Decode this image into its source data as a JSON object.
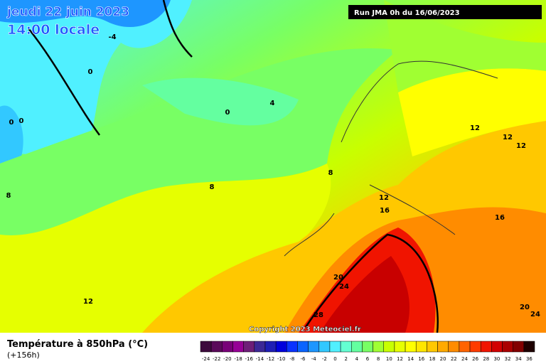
{
  "header": {
    "date": "jeudi 22 juin 2023",
    "time": "14:00 locale",
    "run": "Run JMA 0h du 16/06/2023"
  },
  "map": {
    "contour_labels": [
      "-4",
      "0",
      "0",
      "0",
      "0",
      "4",
      "8",
      "8",
      "8",
      "12",
      "12",
      "12",
      "12",
      "12",
      "16",
      "16",
      "20",
      "24",
      "20",
      "24",
      "28"
    ],
    "copyright": "Copyright 2023 Meteociel.fr"
  },
  "footer": {
    "title": "Température à 850hPa (°C)",
    "lead": "(+156h)"
  },
  "colorbar": {
    "values": [
      -24,
      -22,
      -20,
      -18,
      -16,
      -14,
      -12,
      -10,
      -8,
      -6,
      -4,
      -2,
      0,
      2,
      4,
      6,
      8,
      10,
      12,
      14,
      16,
      18,
      20,
      22,
      24,
      26,
      28,
      30,
      32,
      34,
      36
    ],
    "colors": [
      "#3c0a3c",
      "#5a0a5a",
      "#780078",
      "#960096",
      "#6e1e78",
      "#3c2896",
      "#1e1eb4",
      "#0000dc",
      "#0a32ff",
      "#0a64ff",
      "#1e96ff",
      "#32c8ff",
      "#50f0ff",
      "#64ffd2",
      "#64ffa0",
      "#78ff64",
      "#a0ff32",
      "#c8ff00",
      "#e6ff00",
      "#ffff00",
      "#ffe600",
      "#ffc800",
      "#ffaa00",
      "#ff8c00",
      "#ff6400",
      "#ff3c00",
      "#f01400",
      "#d20000",
      "#aa0000",
      "#820000",
      "#1e0000"
    ]
  }
}
